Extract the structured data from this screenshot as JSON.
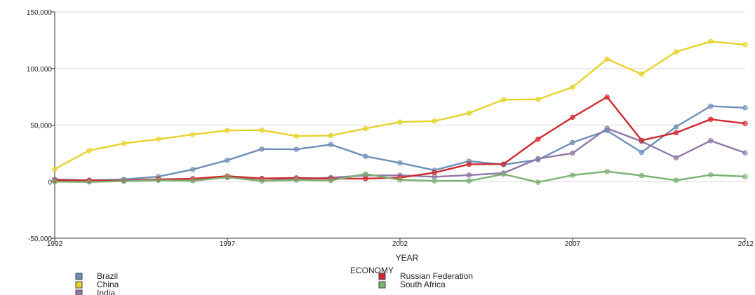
{
  "chart_data": {
    "type": "line",
    "title": "",
    "xlabel": "YEAR",
    "ylabel": "",
    "ylim": [
      -50000,
      150000
    ],
    "xlim": [
      1992,
      2012
    ],
    "y_ticks": [
      -50000,
      0,
      50000,
      100000,
      150000
    ],
    "y_tick_labels": [
      "-50,000",
      "0",
      "50,000",
      "100,000",
      "150,000"
    ],
    "x_ticks": [
      1992,
      1997,
      2002,
      2007,
      2012
    ],
    "x_tick_labels": [
      "1992",
      "1997",
      "2002",
      "2007",
      "2012"
    ],
    "grid": "horizontal",
    "legend_title": "ECONOMY",
    "legend_position": "bottom-left",
    "x": [
      1992,
      1993,
      1994,
      1995,
      1996,
      1997,
      1998,
      1999,
      2000,
      2001,
      2002,
      2003,
      2004,
      2005,
      2006,
      2007,
      2008,
      2009,
      2010,
      2011,
      2012
    ],
    "series": [
      {
        "name": "Brazil",
        "color": "#6f8fb8",
        "values": [
          2000,
          1200,
          2000,
          4400,
          10800,
          18900,
          28800,
          28600,
          32800,
          22400,
          16600,
          10100,
          18100,
          15100,
          19400,
          34600,
          45100,
          25900,
          48500,
          66700,
          65300
        ]
      },
      {
        "name": "China",
        "color": "#e6d32c",
        "values": [
          11200,
          27500,
          33800,
          37500,
          41700,
          45300,
          45500,
          40300,
          40700,
          46900,
          52700,
          53500,
          60600,
          72400,
          72700,
          83500,
          108300,
          95000,
          114700,
          123900,
          121100
        ]
      },
      {
        "name": "India",
        "color": "#8f78a6",
        "values": [
          300,
          600,
          1000,
          2100,
          2400,
          3600,
          2600,
          2200,
          3600,
          5500,
          5600,
          4300,
          5800,
          7600,
          20300,
          25200,
          47100,
          35600,
          21100,
          36200,
          25500
        ]
      },
      {
        "name": "Russian Federation",
        "color": "#d0282d",
        "values": [
          1200,
          1200,
          700,
          2100,
          2600,
          4900,
          2800,
          3300,
          2700,
          2700,
          3500,
          8000,
          15400,
          15500,
          37600,
          56900,
          74800,
          36500,
          43200,
          55100,
          51400
        ]
      },
      {
        "name": "South Africa",
        "color": "#7bb273",
        "values": [
          0,
          -300,
          400,
          1200,
          800,
          3800,
          600,
          1500,
          1000,
          6800,
          1600,
          700,
          700,
          6600,
          -500,
          5700,
          9000,
          5400,
          1200,
          6000,
          4500
        ]
      }
    ]
  }
}
